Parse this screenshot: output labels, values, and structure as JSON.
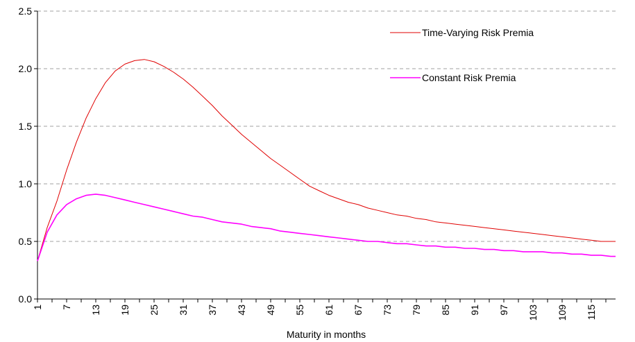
{
  "chart_data": {
    "type": "line",
    "title": "",
    "xlabel": "Maturity in months",
    "ylabel": "",
    "xlim": [
      1,
      120
    ],
    "ylim": [
      0,
      2.5
    ],
    "y_ticks": [
      "0.0",
      "0.5",
      "1.0",
      "1.5",
      "2.0",
      "2.5"
    ],
    "x_tick_labels": [
      "1",
      "7",
      "13",
      "19",
      "25",
      "31",
      "37",
      "43",
      "49",
      "55",
      "61",
      "67",
      "73",
      "79",
      "85",
      "91",
      "97",
      "103",
      "109",
      "115"
    ],
    "grid": "horizontal dashed",
    "legend_placement": "top-right",
    "series": [
      {
        "name": "Time-Varying Risk Premia",
        "color": "#e00000",
        "x": [
          1,
          3,
          5,
          7,
          9,
          11,
          13,
          15,
          17,
          19,
          21,
          23,
          25,
          27,
          29,
          31,
          33,
          35,
          37,
          39,
          41,
          43,
          45,
          47,
          49,
          51,
          53,
          55,
          57,
          59,
          61,
          63,
          65,
          67,
          69,
          71,
          73,
          75,
          77,
          79,
          81,
          83,
          85,
          87,
          89,
          91,
          93,
          95,
          97,
          99,
          101,
          103,
          105,
          107,
          109,
          111,
          113,
          115,
          117,
          119,
          120
        ],
        "values": [
          0.33,
          0.62,
          0.85,
          1.12,
          1.36,
          1.57,
          1.74,
          1.88,
          1.98,
          2.04,
          2.07,
          2.08,
          2.06,
          2.02,
          1.97,
          1.91,
          1.84,
          1.76,
          1.68,
          1.59,
          1.51,
          1.43,
          1.36,
          1.29,
          1.22,
          1.16,
          1.1,
          1.04,
          0.98,
          0.94,
          0.9,
          0.87,
          0.84,
          0.82,
          0.79,
          0.77,
          0.75,
          0.73,
          0.72,
          0.7,
          0.69,
          0.67,
          0.66,
          0.65,
          0.64,
          0.63,
          0.62,
          0.61,
          0.6,
          0.59,
          0.58,
          0.57,
          0.56,
          0.55,
          0.54,
          0.53,
          0.52,
          0.51,
          0.5,
          0.5,
          0.5
        ]
      },
      {
        "name": "Constant Risk Premia",
        "color": "#ff00ff",
        "x": [
          1,
          3,
          5,
          7,
          9,
          11,
          13,
          15,
          17,
          19,
          21,
          23,
          25,
          27,
          29,
          31,
          33,
          35,
          37,
          39,
          41,
          43,
          45,
          47,
          49,
          51,
          53,
          55,
          57,
          59,
          61,
          63,
          65,
          67,
          69,
          71,
          73,
          75,
          77,
          79,
          81,
          83,
          85,
          87,
          89,
          91,
          93,
          95,
          97,
          99,
          101,
          103,
          105,
          107,
          109,
          111,
          113,
          115,
          117,
          119,
          120
        ],
        "values": [
          0.33,
          0.58,
          0.73,
          0.82,
          0.87,
          0.9,
          0.91,
          0.9,
          0.88,
          0.86,
          0.84,
          0.82,
          0.8,
          0.78,
          0.76,
          0.74,
          0.72,
          0.71,
          0.69,
          0.67,
          0.66,
          0.65,
          0.63,
          0.62,
          0.61,
          0.59,
          0.58,
          0.57,
          0.56,
          0.55,
          0.54,
          0.53,
          0.52,
          0.51,
          0.5,
          0.5,
          0.49,
          0.48,
          0.48,
          0.47,
          0.46,
          0.46,
          0.45,
          0.45,
          0.44,
          0.44,
          0.43,
          0.43,
          0.42,
          0.42,
          0.41,
          0.41,
          0.41,
          0.4,
          0.4,
          0.39,
          0.39,
          0.38,
          0.38,
          0.37,
          0.37
        ]
      }
    ]
  }
}
